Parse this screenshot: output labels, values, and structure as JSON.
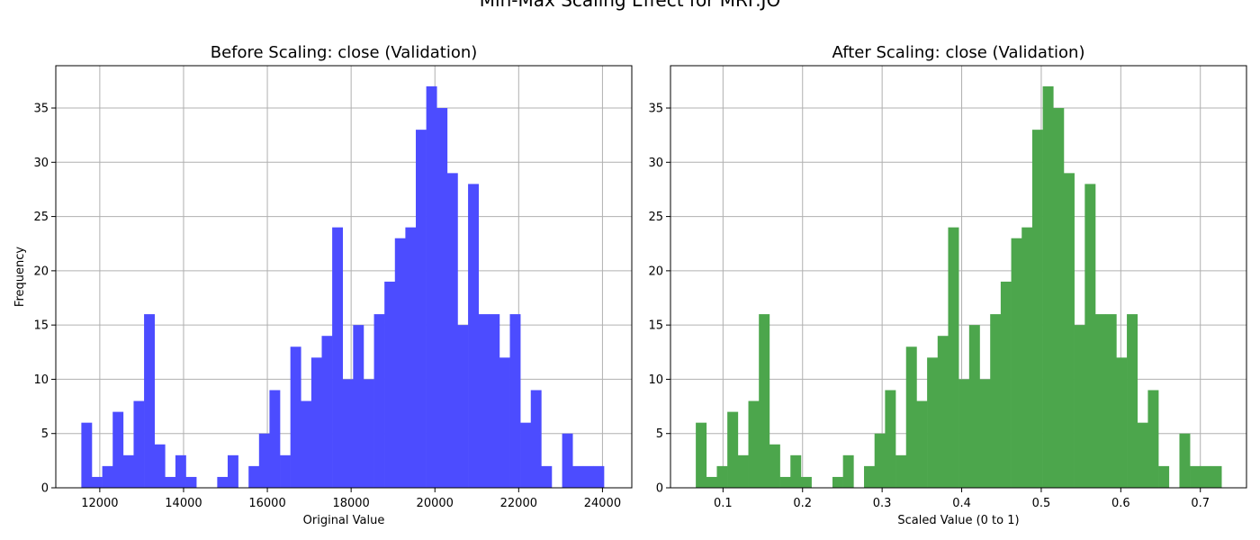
{
  "figure": {
    "suptitle": "Min-Max Scaling Effect for MRF.JO"
  },
  "chart_data": [
    {
      "type": "histogram",
      "title": "Before Scaling: close (Validation)",
      "xlabel": "Original Value",
      "ylabel": "Frequency",
      "color": "#4c4cff",
      "xlim": [
        10950,
        24700
      ],
      "ylim": [
        0,
        38.9
      ],
      "xticks": [
        12000,
        14000,
        16000,
        18000,
        20000,
        22000,
        24000
      ],
      "yticks": [
        0,
        5,
        10,
        15,
        20,
        25,
        30,
        35
      ],
      "grid": true,
      "bins": {
        "start": 11560,
        "width": 249.5
      },
      "counts": [
        6,
        1,
        2,
        7,
        3,
        8,
        16,
        4,
        1,
        3,
        1,
        0,
        0,
        1,
        3,
        0,
        2,
        5,
        9,
        3,
        13,
        8,
        12,
        14,
        24,
        10,
        15,
        10,
        16,
        19,
        23,
        24,
        33,
        37,
        35,
        29,
        15,
        28,
        16,
        16,
        12,
        16,
        6,
        9,
        2,
        0,
        5,
        2,
        2,
        2
      ]
    },
    {
      "type": "histogram",
      "title": "After Scaling: close (Validation)",
      "xlabel": "Scaled Value (0 to 1)",
      "ylabel": "",
      "color": "#4ca64c",
      "xlim": [
        0.034,
        0.758
      ],
      "ylim": [
        0,
        38.9
      ],
      "xticks": [
        0.1,
        0.2,
        0.3,
        0.4,
        0.5,
        0.6,
        0.7
      ],
      "xtick_labels": [
        "0.1",
        "0.2",
        "0.3",
        "0.4",
        "0.5",
        "0.6",
        "0.7"
      ],
      "yticks": [
        0,
        5,
        10,
        15,
        20,
        25,
        30,
        35
      ],
      "grid": true,
      "bins": {
        "start": 0.0658,
        "width": 0.013215
      },
      "counts": [
        6,
        1,
        2,
        7,
        3,
        8,
        16,
        4,
        1,
        3,
        1,
        0,
        0,
        1,
        3,
        0,
        2,
        5,
        9,
        3,
        13,
        8,
        12,
        14,
        24,
        10,
        15,
        10,
        16,
        19,
        23,
        24,
        33,
        37,
        35,
        29,
        15,
        28,
        16,
        16,
        12,
        16,
        6,
        9,
        2,
        0,
        5,
        2,
        2,
        2
      ]
    }
  ]
}
